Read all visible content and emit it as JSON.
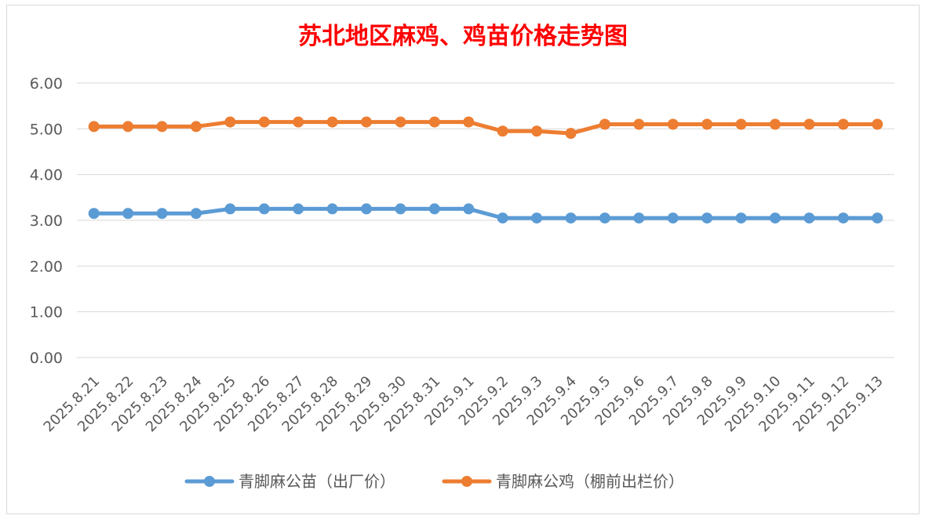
{
  "chart_data": {
    "type": "line",
    "title": "苏北地区麻鸡、鸡苗价格走势图",
    "categories": [
      "2025.8.21",
      "2025.8.22",
      "2025.8.23",
      "2025.8.24",
      "2025.8.25",
      "2025.8.26",
      "2025.8.27",
      "2025.8.28",
      "2025.8.29",
      "2025.8.30",
      "2025.8.31",
      "2025.9.1",
      "2025.9.2",
      "2025.9.3",
      "2025.9.4",
      "2025.9.5",
      "2025.9.6",
      "2025.9.7",
      "2025.9.8",
      "2025.9.9",
      "2025.9.10",
      "2025.9.11",
      "2025.9.12",
      "2025.9.13"
    ],
    "series": [
      {
        "name": "青脚麻公苗（出厂价）",
        "color": "#5b9bd5",
        "values": [
          3.15,
          3.15,
          3.15,
          3.15,
          3.25,
          3.25,
          3.25,
          3.25,
          3.25,
          3.25,
          3.25,
          3.25,
          3.05,
          3.05,
          3.05,
          3.05,
          3.05,
          3.05,
          3.05,
          3.05,
          3.05,
          3.05,
          3.05,
          3.05
        ]
      },
      {
        "name": "青脚麻公鸡（棚前出栏价）",
        "color": "#ed7d31",
        "values": [
          5.05,
          5.05,
          5.05,
          5.05,
          5.15,
          5.15,
          5.15,
          5.15,
          5.15,
          5.15,
          5.15,
          5.15,
          4.95,
          4.95,
          4.9,
          5.1,
          5.1,
          5.1,
          5.1,
          5.1,
          5.1,
          5.1,
          5.1,
          5.1
        ]
      }
    ],
    "ylim": [
      0,
      6
    ],
    "yticks": [
      "0.00",
      "1.00",
      "2.00",
      "3.00",
      "4.00",
      "5.00",
      "6.00"
    ],
    "grid": true,
    "legend": "bottom"
  }
}
